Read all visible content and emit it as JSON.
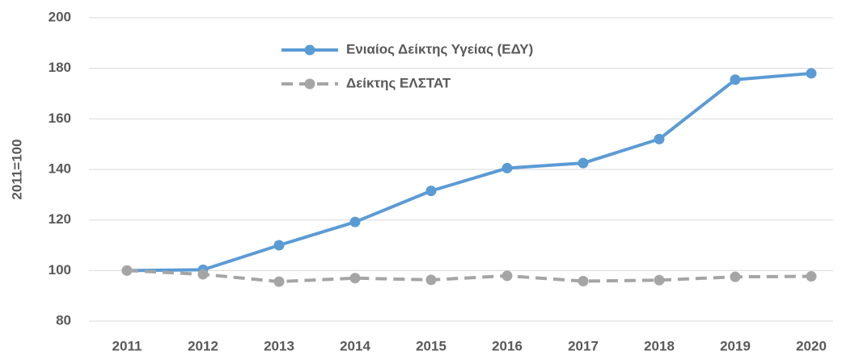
{
  "chart_data": {
    "type": "line",
    "y_label": "2011=100",
    "categories": [
      "2011",
      "2012",
      "2013",
      "2014",
      "2015",
      "2016",
      "2017",
      "2018",
      "2019",
      "2020"
    ],
    "series": [
      {
        "name": "Ενιαίος Δείκτης Υγείας (ΕΔΥ)",
        "color": "#5b9bd5",
        "dashed": false,
        "values": [
          100,
          100.3,
          110,
          119.2,
          131.5,
          140.5,
          142.5,
          152,
          175.5,
          178
        ]
      },
      {
        "name": "Δείκτης ΕΛΣΤΑΤ",
        "color": "#a5a5a5",
        "dashed": true,
        "values": [
          100,
          98.5,
          95.6,
          97,
          96.3,
          97.9,
          95.8,
          96.2,
          97.5,
          97.7
        ]
      }
    ],
    "ylim": [
      80,
      200
    ],
    "yticks": [
      80,
      100,
      120,
      140,
      160,
      180,
      200
    ],
    "grid": true
  }
}
